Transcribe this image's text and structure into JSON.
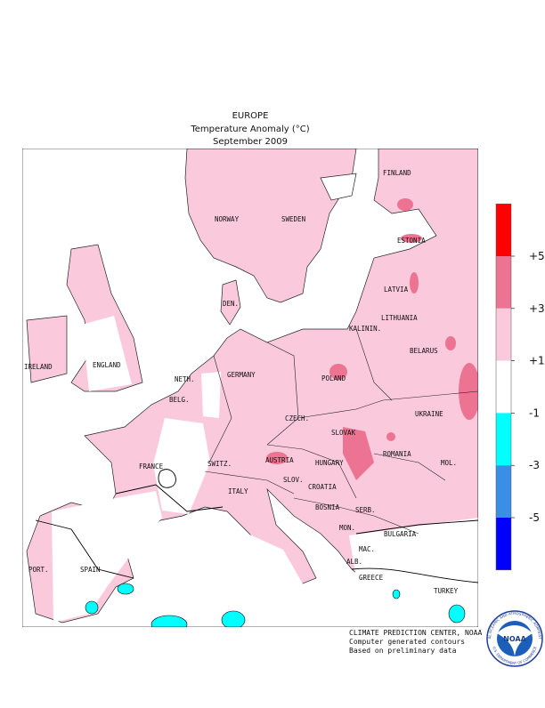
{
  "header": {
    "region": "EUROPE",
    "title": "Temperature Anomaly (°C)",
    "period": "September 2009"
  },
  "map": {
    "labels": [
      "FINLAND",
      "NORWAY",
      "SWEDEN",
      "ESTONIA",
      "LATVIA",
      "DEN.",
      "LITHUANIA",
      "KALININ.",
      "BELARUS",
      "IRELAND",
      "ENGLAND",
      "NETH.",
      "GERMANY",
      "POLAND",
      "BELG.",
      "UKRAINE",
      "CZECH.",
      "SLOVAK",
      "FRANCE",
      "SWITZ.",
      "AUSTRIA",
      "HUNGARY",
      "MOL.",
      "ROMANIA",
      "ITALY",
      "SLOV.",
      "CROATIA",
      "BOSNIA",
      "SERB.",
      "MON.",
      "BULGARIA",
      "MAC.",
      "ALB.",
      "PORT.",
      "SPAIN",
      "GREECE",
      "TURKEY"
    ]
  },
  "legend": {
    "ticks": [
      {
        "value": 5,
        "label": "+5"
      },
      {
        "value": 3,
        "label": "+3"
      },
      {
        "value": 1,
        "label": "+1"
      },
      {
        "value": -1,
        "label": "-1"
      },
      {
        "value": -3,
        "label": "-3"
      },
      {
        "value": -5,
        "label": "-5"
      }
    ],
    "colors": [
      "#ff0000",
      "#ec7391",
      "#fbc9dc",
      "#ffffff",
      "#00ffff",
      "#3a8ee6",
      "#0000ff"
    ]
  },
  "footer": {
    "lines": [
      "CLIMATE PREDICTION CENTER, NOAA",
      "Computer generated contours",
      "Based on preliminary data"
    ]
  },
  "logo": {
    "name": "NOAA",
    "ring_top": "NATIONAL OCEANIC AND ATMOSPHERIC ADMINISTRATION",
    "ring_bottom": "U.S. DEPARTMENT OF COMMERCE"
  }
}
